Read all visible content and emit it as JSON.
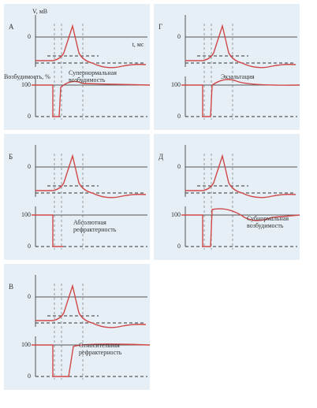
{
  "panels": [
    {
      "letter": "А",
      "ticks": [
        "0",
        "100",
        "0"
      ],
      "annotations": [
        "V, мВ",
        "t, мс",
        "Возбудимость, %",
        "Супернормальная возбудимость"
      ]
    },
    {
      "letter": "Г",
      "ticks": [
        "0",
        "100",
        "0"
      ],
      "annotations": [
        "Экзальтация"
      ]
    },
    {
      "letter": "Б",
      "ticks": [
        "0",
        "100",
        "0"
      ],
      "annotations": [
        "Абсолютная рефрактерность"
      ]
    },
    {
      "letter": "Д",
      "ticks": [
        "0",
        "100",
        "0"
      ],
      "annotations": [
        "Субнормальная возбудимость"
      ]
    },
    {
      "letter": "В",
      "ticks": [
        "0",
        "100",
        "0"
      ],
      "annotations": [
        "Относительная рефрактерность"
      ]
    }
  ]
}
